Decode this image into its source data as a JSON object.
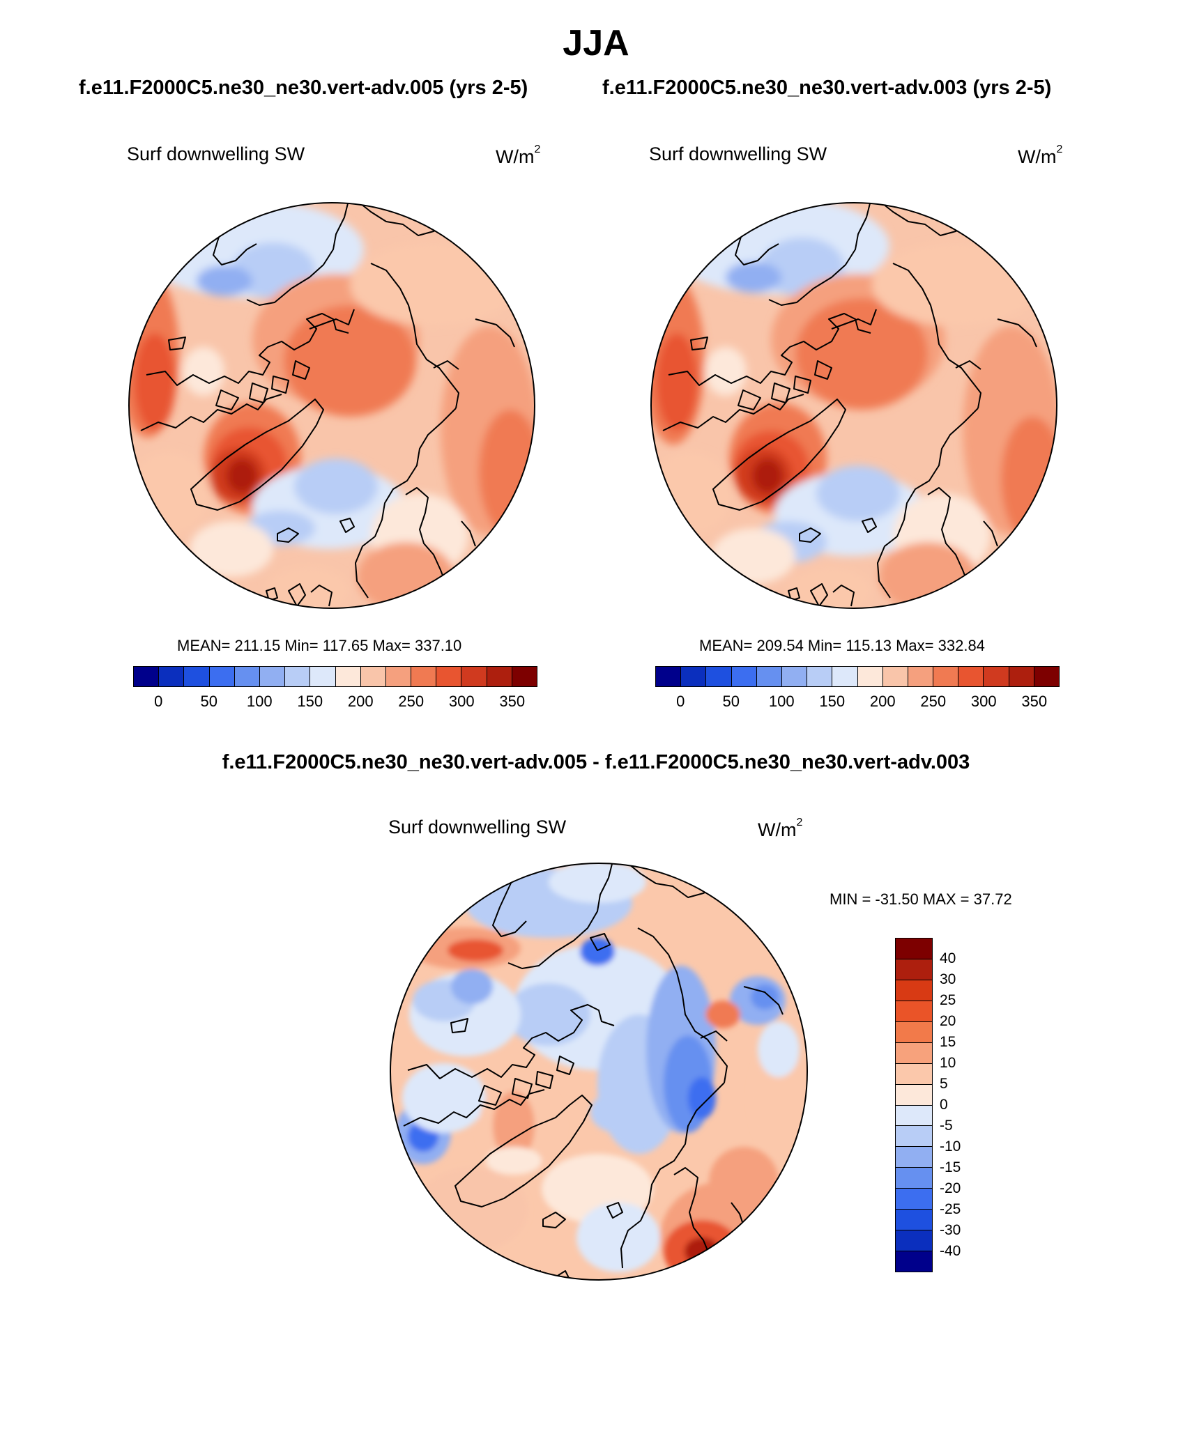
{
  "title": "JJA",
  "case_titles": {
    "left": "f.e11.F2000C5.ne30_ne30.vert-adv.005 (yrs 2-5)",
    "right": "f.e11.F2000C5.ne30_ne30.vert-adv.003 (yrs 2-5)"
  },
  "diff_title": "f.e11.F2000C5.ne30_ne30.vert-adv.005 - f.e11.F2000C5.ne30_ne30.vert-adv.003",
  "variable": "Surf downwelling SW",
  "units_base": "W/m",
  "units_exp": "2",
  "panels": {
    "left": {
      "stats": "MEAN= 211.15  Min= 117.65  Max= 337.10"
    },
    "right": {
      "stats": "MEAN= 209.54  Min= 115.13  Max= 332.84"
    },
    "diff": {
      "stats": "MIN = -31.50 MAX =  37.72"
    }
  },
  "chart_data": [
    {
      "type": "map",
      "projection": "north-polar-stereographic",
      "title": "Surf downwelling SW",
      "case": "f.e11.F2000C5.ne30_ne30.vert-adv.005 (yrs 2-5)",
      "units": "W/m^2",
      "mean": 211.15,
      "min": 117.65,
      "max": 337.1,
      "colorbar_ticks": [
        "0",
        "50",
        "100",
        "150",
        "200",
        "250",
        "300",
        "350"
      ]
    },
    {
      "type": "map",
      "projection": "north-polar-stereographic",
      "title": "Surf downwelling SW",
      "case": "f.e11.F2000C5.ne30_ne30.vert-adv.003 (yrs 2-5)",
      "units": "W/m^2",
      "mean": 209.54,
      "min": 115.13,
      "max": 332.84,
      "colorbar_ticks": [
        "0",
        "50",
        "100",
        "150",
        "200",
        "250",
        "300",
        "350"
      ]
    },
    {
      "type": "map",
      "projection": "north-polar-stereographic",
      "title": "Surf downwelling SW",
      "case": "f.e11.F2000C5.ne30_ne30.vert-adv.005 - f.e11.F2000C5.ne30_ne30.vert-adv.003",
      "units": "W/m^2",
      "min": -31.5,
      "max": 37.72,
      "colorbar_ticks": [
        "40",
        "30",
        "25",
        "20",
        "15",
        "10",
        "5",
        "0",
        "-5",
        "-10",
        "-15",
        "-20",
        "-25",
        "-30",
        "-40"
      ]
    }
  ],
  "colors": {
    "abs_scale": [
      "#00008b",
      "#0b2fbe",
      "#1e50e0",
      "#3c6ef0",
      "#6690f0",
      "#91aff2",
      "#b8cdf6",
      "#dde8fa",
      "#fde8da",
      "#f9c5aa",
      "#f5a07e",
      "#f07a52",
      "#e85530",
      "#d03a1f",
      "#ad1f0e",
      "#7d0000"
    ],
    "diff_scale": [
      "#7d0000",
      "#ad1f0e",
      "#d83a14",
      "#ea5428",
      "#f27a4a",
      "#f7a27c",
      "#fbc8ab",
      "#fde8da",
      "#dde8fa",
      "#b8cdf6",
      "#91aff2",
      "#6690f0",
      "#3c6ef0",
      "#1e50e0",
      "#0b2fbe",
      "#00008b"
    ]
  }
}
